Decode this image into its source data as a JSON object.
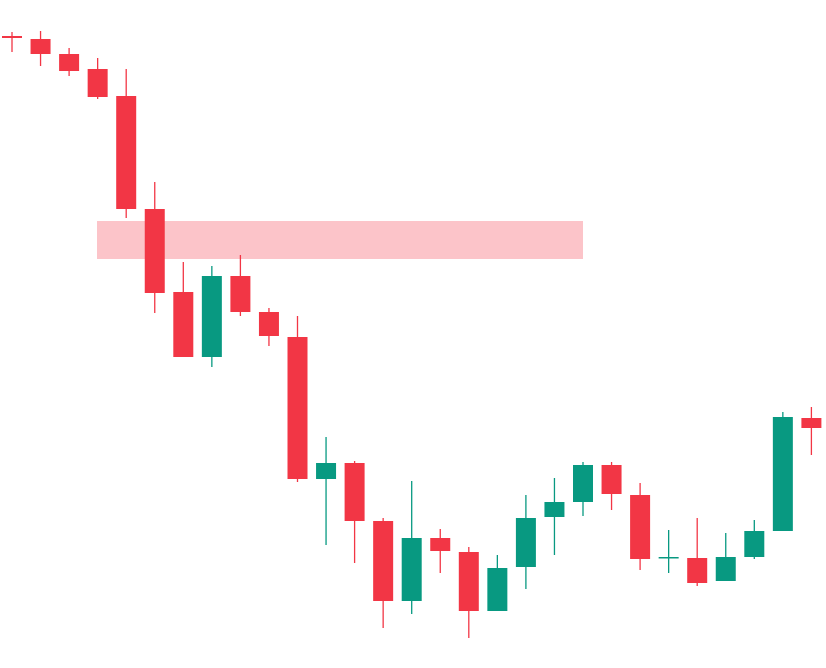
{
  "chart_data": {
    "type": "candlestick",
    "ylim": [
      0,
      668
    ],
    "up_color": "#089981",
    "down_color": "#f23645",
    "zone": {
      "low": 409,
      "high": 447,
      "color": "#fcc4c9"
    },
    "open": [
      632,
      629,
      614,
      599,
      572,
      459,
      376,
      311,
      392,
      356,
      331,
      189,
      205,
      147,
      67,
      130,
      116,
      57,
      101,
      151,
      166,
      203,
      173,
      110,
      110,
      87,
      111,
      137,
      250
    ],
    "high": [
      636,
      637,
      620,
      610,
      599,
      486,
      406,
      402,
      413,
      360,
      352,
      231,
      207,
      150,
      187,
      139,
      121,
      113,
      173,
      190,
      206,
      206,
      185,
      138,
      150,
      135,
      148,
      256,
      261
    ],
    "low": [
      616,
      602,
      592,
      569,
      450,
      355,
      311,
      301,
      352,
      322,
      186,
      123,
      105,
      40,
      54,
      95,
      30,
      57,
      79,
      113,
      152,
      158,
      98,
      95,
      82,
      87,
      109,
      137,
      213
    ],
    "close": [
      630,
      614,
      597,
      571,
      459,
      375,
      311,
      392,
      356,
      332,
      189,
      205,
      147,
      67,
      130,
      117,
      57,
      100,
      150,
      166,
      203,
      174,
      109,
      111,
      85,
      111,
      137,
      251,
      240
    ]
  }
}
